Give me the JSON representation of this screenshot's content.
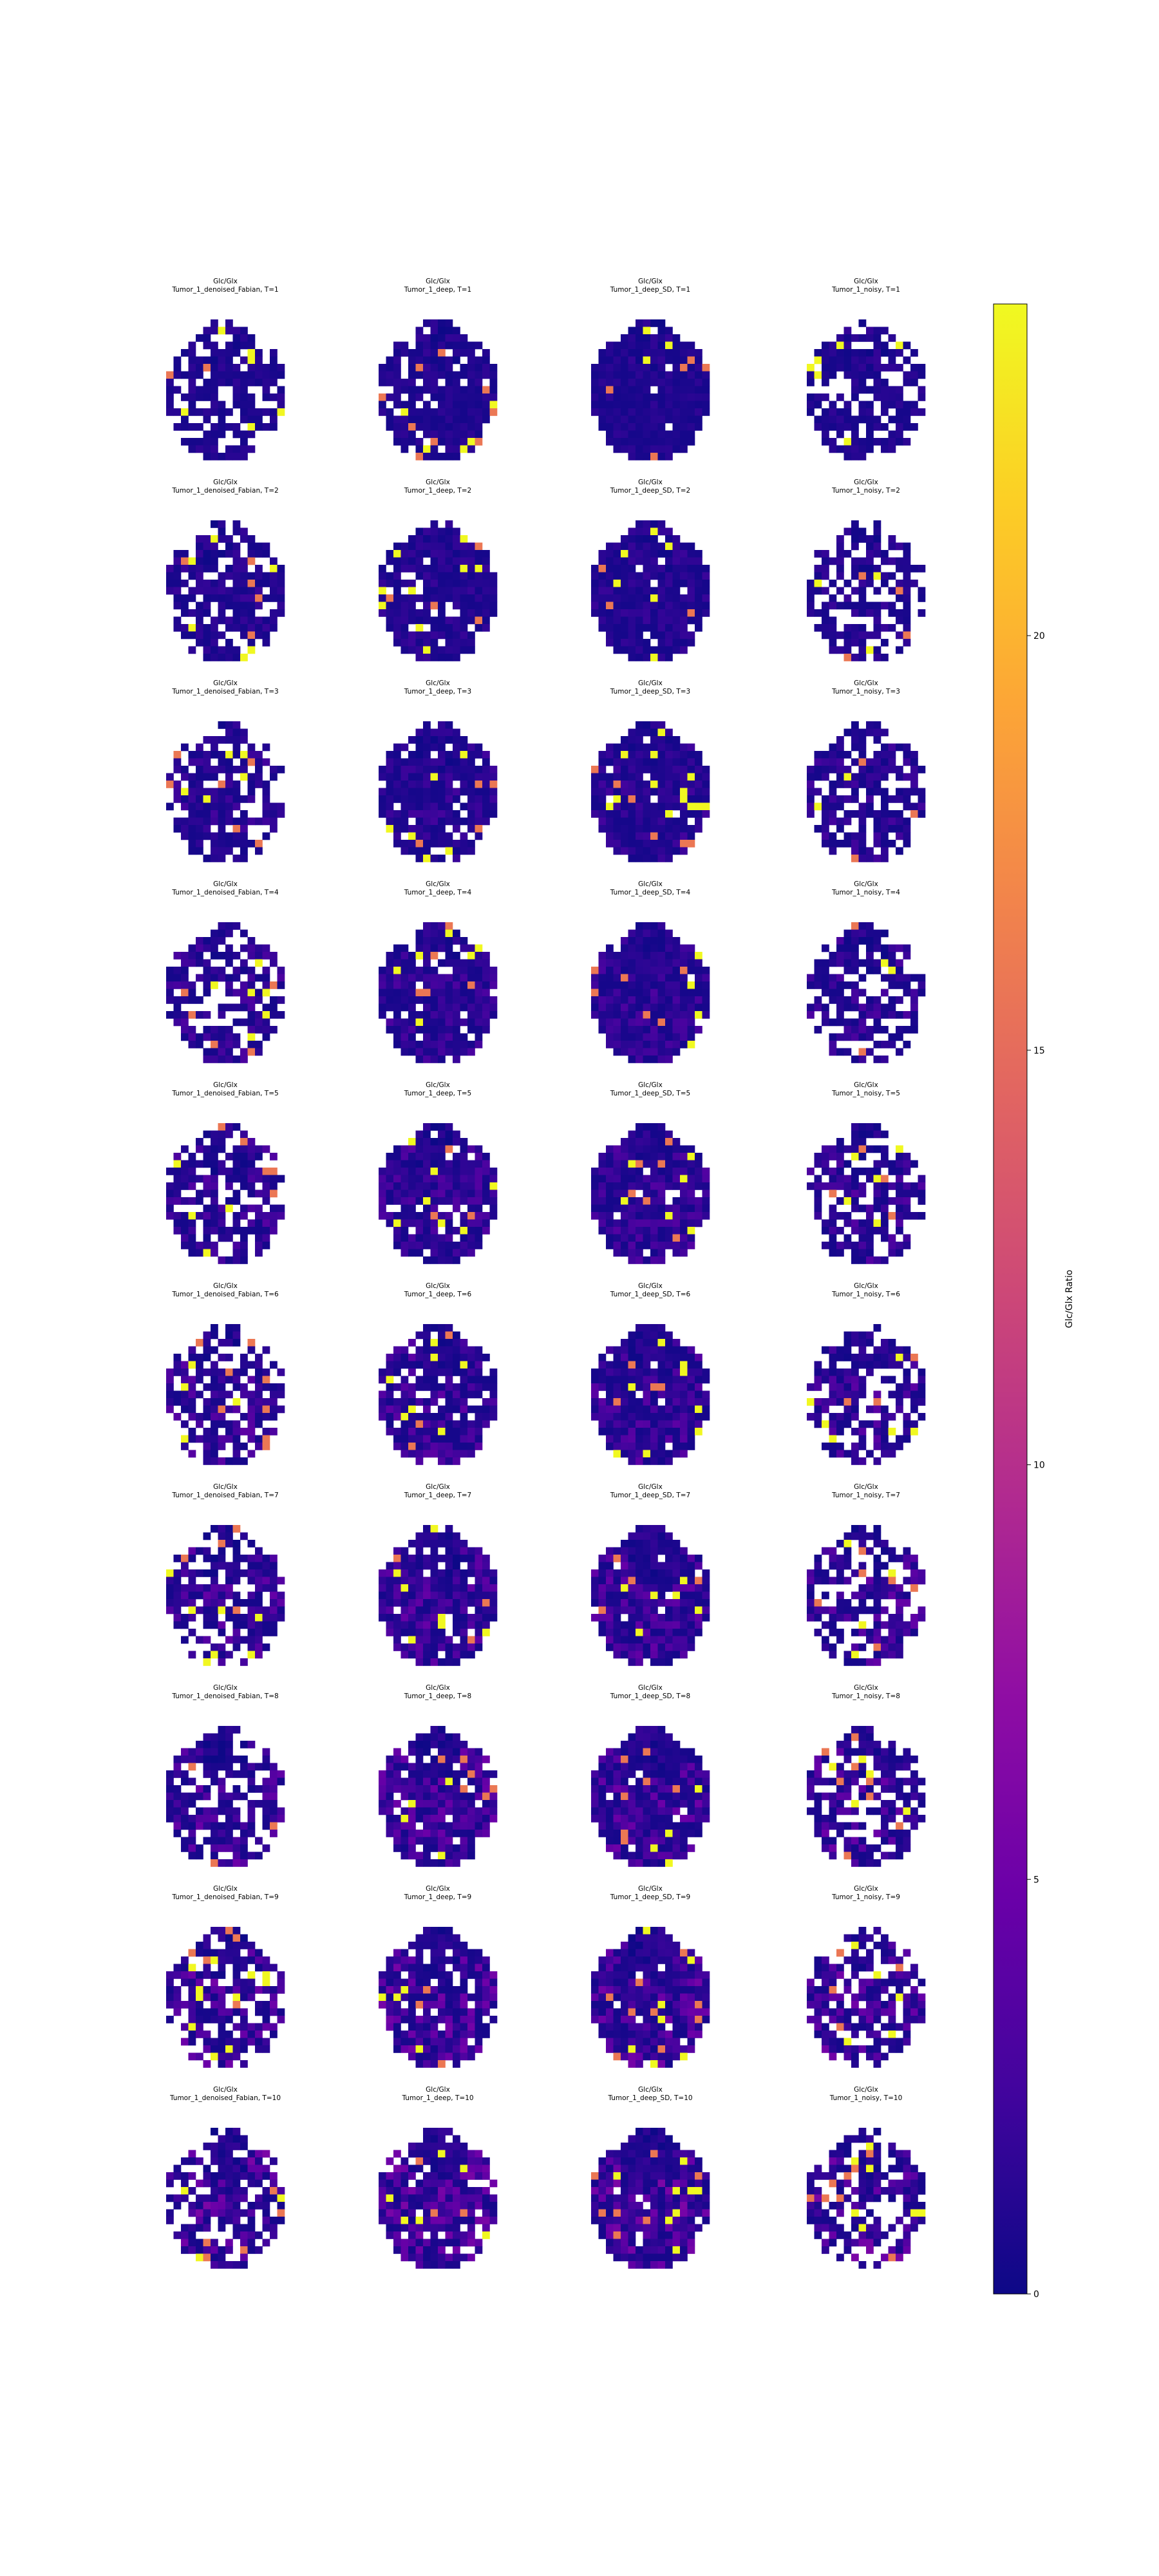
{
  "chart_data": {
    "type": "heatmap",
    "colormap": "plasma",
    "rows": [
      "T=1",
      "T=2",
      "T=3",
      "T=4",
      "T=5",
      "T=6",
      "T=7",
      "T=8",
      "T=9",
      "T=10"
    ],
    "columns": [
      "Tumor_1_denoised_Fabian",
      "Tumor_1_deep",
      "Tumor_1_deep_SD",
      "Tumor_1_noisy"
    ],
    "panel_titles": [
      [
        "Glc/Glx\nTumor_1_denoised_Fabian, T=1",
        "Glc/Glx\nTumor_1_deep, T=1",
        "Glc/Glx\nTumor_1_deep_SD, T=1",
        "Glc/Glx\nTumor_1_noisy, T=1"
      ],
      [
        "Glc/Glx\nTumor_1_denoised_Fabian, T=2",
        "Glc/Glx\nTumor_1_deep, T=2",
        "Glc/Glx\nTumor_1_deep_SD, T=2",
        "Glc/Glx\nTumor_1_noisy, T=2"
      ],
      [
        "Glc/Glx\nTumor_1_denoised_Fabian, T=3",
        "Glc/Glx\nTumor_1_deep, T=3",
        "Glc/Glx\nTumor_1_deep_SD, T=3",
        "Glc/Glx\nTumor_1_noisy, T=3"
      ],
      [
        "Glc/Glx\nTumor_1_denoised_Fabian, T=4",
        "Glc/Glx\nTumor_1_deep, T=4",
        "Glc/Glx\nTumor_1_deep_SD, T=4",
        "Glc/Glx\nTumor_1_noisy, T=4"
      ],
      [
        "Glc/Glx\nTumor_1_denoised_Fabian, T=5",
        "Glc/Glx\nTumor_1_deep, T=5",
        "Glc/Glx\nTumor_1_deep_SD, T=5",
        "Glc/Glx\nTumor_1_noisy, T=5"
      ],
      [
        "Glc/Glx\nTumor_1_denoised_Fabian, T=6",
        "Glc/Glx\nTumor_1_deep, T=6",
        "Glc/Glx\nTumor_1_deep_SD, T=6",
        "Glc/Glx\nTumor_1_noisy, T=6"
      ],
      [
        "Glc/Glx\nTumor_1_denoised_Fabian, T=7",
        "Glc/Glx\nTumor_1_deep, T=7",
        "Glc/Glx\nTumor_1_deep_SD, T=7",
        "Glc/Glx\nTumor_1_noisy, T=7"
      ],
      [
        "Glc/Glx\nTumor_1_denoised_Fabian, T=8",
        "Glc/Glx\nTumor_1_deep, T=8",
        "Glc/Glx\nTumor_1_deep_SD, T=8",
        "Glc/Glx\nTumor_1_noisy, T=8"
      ],
      [
        "Glc/Glx\nTumor_1_denoised_Fabian, T=9",
        "Glc/Glx\nTumor_1_deep, T=9",
        "Glc/Glx\nTumor_1_deep_SD, T=9",
        "Glc/Glx\nTumor_1_noisy, T=9"
      ],
      [
        "Glc/Glx\nTumor_1_denoised_Fabian, T=10",
        "Glc/Glx\nTumor_1_deep, T=10",
        "Glc/Glx\nTumor_1_deep_SD, T=10",
        "Glc/Glx\nTumor_1_noisy, T=10"
      ]
    ],
    "colorbar": {
      "label": "Glc/Glx Ratio",
      "range": [
        0,
        24
      ],
      "ticks": [
        0,
        5,
        10,
        15,
        20
      ]
    },
    "axes_visible": false
  }
}
